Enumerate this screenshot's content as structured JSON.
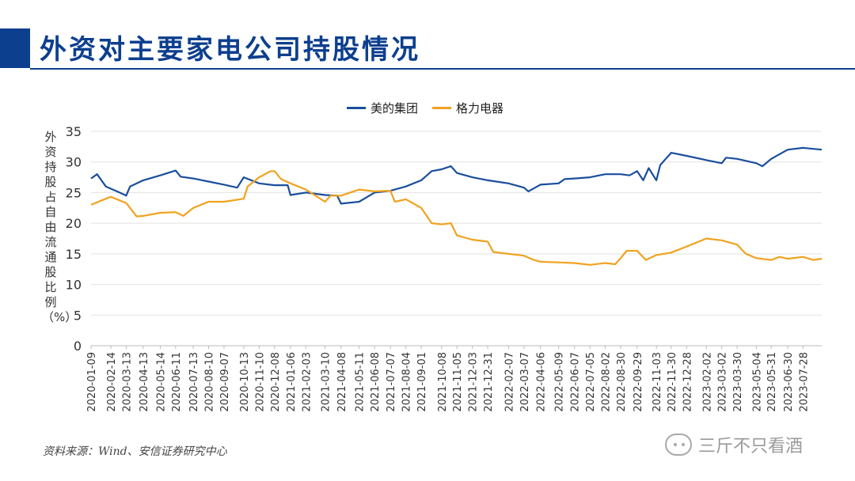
{
  "header": {
    "title": "外资对主要家电公司持股情况"
  },
  "chart_data": {
    "type": "line",
    "xlabel": "",
    "ylabel": "外资持股占自由流通股比例（%）",
    "ylim": [
      0,
      35
    ],
    "yticks": [
      0,
      5,
      10,
      15,
      20,
      25,
      30,
      35
    ],
    "grid": true,
    "legend_position": "top-center",
    "x_start": "2020-01-09",
    "x_end": "2023-08-31",
    "categories": [
      "2020-01-09",
      "2020-02-14",
      "2020-03-13",
      "2020-04-13",
      "2020-05-14",
      "2020-06-11",
      "2020-07-13",
      "2020-08-10",
      "2020-09-07",
      "2020-10-13",
      "2020-11-10",
      "2020-12-08",
      "2021-01-06",
      "2021-02-03",
      "2021-03-10",
      "2021-04-08",
      "2021-05-11",
      "2021-06-08",
      "2021-07-07",
      "2021-08-04",
      "2021-09-01",
      "2021-10-08",
      "2021-11-05",
      "2021-12-03",
      "2021-12-31",
      "2022-02-07",
      "2022-03-07",
      "2022-04-06",
      "2022-05-09",
      "2022-06-07",
      "2022-07-05",
      "2022-08-02",
      "2022-08-30",
      "2022-09-29",
      "2022-11-03",
      "2022-11-30",
      "2022-12-28",
      "2023-02-02",
      "2023-03-02",
      "2023-03-30",
      "2023-05-04",
      "2023-05-31",
      "2023-06-30",
      "2023-07-28"
    ],
    "series": [
      {
        "name": "美的集团",
        "color": "#1a4e9c",
        "points": [
          [
            "2020-01-09",
            27.3
          ],
          [
            "2020-01-20",
            28.0
          ],
          [
            "2020-02-05",
            26.0
          ],
          [
            "2020-03-01",
            25.0
          ],
          [
            "2020-03-13",
            24.5
          ],
          [
            "2020-03-20",
            26.0
          ],
          [
            "2020-04-13",
            27.0
          ],
          [
            "2020-05-14",
            27.8
          ],
          [
            "2020-06-11",
            28.6
          ],
          [
            "2020-06-20",
            27.6
          ],
          [
            "2020-07-13",
            27.3
          ],
          [
            "2020-08-10",
            26.8
          ],
          [
            "2020-09-07",
            26.3
          ],
          [
            "2020-10-01",
            25.8
          ],
          [
            "2020-10-13",
            27.5
          ],
          [
            "2020-11-10",
            26.5
          ],
          [
            "2020-12-08",
            26.2
          ],
          [
            "2021-01-01",
            26.2
          ],
          [
            "2021-01-06",
            24.6
          ],
          [
            "2021-02-03",
            25.0
          ],
          [
            "2021-03-10",
            24.6
          ],
          [
            "2021-04-01",
            24.5
          ],
          [
            "2021-04-08",
            23.2
          ],
          [
            "2021-05-11",
            23.5
          ],
          [
            "2021-06-08",
            25.0
          ],
          [
            "2021-07-07",
            25.3
          ],
          [
            "2021-08-04",
            26.0
          ],
          [
            "2021-09-01",
            27.0
          ],
          [
            "2021-09-20",
            28.5
          ],
          [
            "2021-10-08",
            28.8
          ],
          [
            "2021-10-25",
            29.3
          ],
          [
            "2021-11-05",
            28.2
          ],
          [
            "2021-12-03",
            27.5
          ],
          [
            "2021-12-31",
            27.0
          ],
          [
            "2022-02-07",
            26.5
          ],
          [
            "2022-03-07",
            25.8
          ],
          [
            "2022-03-15",
            25.2
          ],
          [
            "2022-04-06",
            26.3
          ],
          [
            "2022-05-09",
            26.5
          ],
          [
            "2022-05-20",
            27.2
          ],
          [
            "2022-06-07",
            27.3
          ],
          [
            "2022-07-05",
            27.5
          ],
          [
            "2022-08-02",
            28.0
          ],
          [
            "2022-08-30",
            28.0
          ],
          [
            "2022-09-15",
            27.8
          ],
          [
            "2022-09-29",
            28.5
          ],
          [
            "2022-10-10",
            27.0
          ],
          [
            "2022-10-20",
            29.0
          ],
          [
            "2022-11-03",
            27.0
          ],
          [
            "2022-11-10",
            29.5
          ],
          [
            "2022-11-20",
            30.5
          ],
          [
            "2022-11-30",
            31.5
          ],
          [
            "2022-12-28",
            31.0
          ],
          [
            "2023-02-02",
            30.3
          ],
          [
            "2023-03-02",
            29.8
          ],
          [
            "2023-03-10",
            30.7
          ],
          [
            "2023-03-30",
            30.5
          ],
          [
            "2023-05-04",
            29.8
          ],
          [
            "2023-05-15",
            29.3
          ],
          [
            "2023-05-31",
            30.5
          ],
          [
            "2023-06-30",
            32.0
          ],
          [
            "2023-07-28",
            32.3
          ],
          [
            "2023-08-31",
            32.0
          ]
        ]
      },
      {
        "name": "格力电器",
        "color": "#f0a21f",
        "points": [
          [
            "2020-01-09",
            23.0
          ],
          [
            "2020-02-05",
            24.0
          ],
          [
            "2020-02-14",
            24.3
          ],
          [
            "2020-03-13",
            23.3
          ],
          [
            "2020-04-01",
            21.1
          ],
          [
            "2020-04-13",
            21.2
          ],
          [
            "2020-05-14",
            21.7
          ],
          [
            "2020-06-11",
            21.8
          ],
          [
            "2020-06-25",
            21.2
          ],
          [
            "2020-07-13",
            22.5
          ],
          [
            "2020-08-10",
            23.5
          ],
          [
            "2020-09-07",
            23.5
          ],
          [
            "2020-10-13",
            24.0
          ],
          [
            "2020-10-20",
            26.0
          ],
          [
            "2020-11-10",
            27.5
          ],
          [
            "2020-12-01",
            28.5
          ],
          [
            "2020-12-08",
            28.5
          ],
          [
            "2020-12-20",
            27.2
          ],
          [
            "2021-01-06",
            26.5
          ],
          [
            "2021-02-03",
            25.5
          ],
          [
            "2021-03-10",
            23.5
          ],
          [
            "2021-03-20",
            24.5
          ],
          [
            "2021-04-08",
            24.5
          ],
          [
            "2021-05-11",
            25.5
          ],
          [
            "2021-06-08",
            25.2
          ],
          [
            "2021-07-07",
            25.3
          ],
          [
            "2021-07-15",
            23.5
          ],
          [
            "2021-08-04",
            23.9
          ],
          [
            "2021-09-01",
            22.5
          ],
          [
            "2021-09-20",
            20.0
          ],
          [
            "2021-10-08",
            19.8
          ],
          [
            "2021-10-25",
            20.0
          ],
          [
            "2021-11-05",
            18.0
          ],
          [
            "2021-12-03",
            17.3
          ],
          [
            "2021-12-31",
            17.0
          ],
          [
            "2022-01-10",
            15.3
          ],
          [
            "2022-02-07",
            15.0
          ],
          [
            "2022-03-07",
            14.7
          ],
          [
            "2022-03-25",
            14.0
          ],
          [
            "2022-04-06",
            13.7
          ],
          [
            "2022-05-09",
            13.6
          ],
          [
            "2022-06-07",
            13.5
          ],
          [
            "2022-07-05",
            13.2
          ],
          [
            "2022-08-02",
            13.5
          ],
          [
            "2022-08-20",
            13.3
          ],
          [
            "2022-08-30",
            14.3
          ],
          [
            "2022-09-10",
            15.5
          ],
          [
            "2022-09-29",
            15.5
          ],
          [
            "2022-10-15",
            14.0
          ],
          [
            "2022-11-03",
            14.8
          ],
          [
            "2022-11-30",
            15.2
          ],
          [
            "2022-12-28",
            16.2
          ],
          [
            "2023-02-02",
            17.5
          ],
          [
            "2023-03-02",
            17.2
          ],
          [
            "2023-03-30",
            16.5
          ],
          [
            "2023-04-15",
            15.0
          ],
          [
            "2023-05-04",
            14.3
          ],
          [
            "2023-05-31",
            14.0
          ],
          [
            "2023-06-15",
            14.5
          ],
          [
            "2023-06-30",
            14.2
          ],
          [
            "2023-07-28",
            14.5
          ],
          [
            "2023-08-15",
            14.0
          ],
          [
            "2023-08-31",
            14.2
          ]
        ]
      }
    ]
  },
  "footer": {
    "source": "资料来源：Wind、安信证券研究中心",
    "watermark": "三斤不只看酒"
  }
}
